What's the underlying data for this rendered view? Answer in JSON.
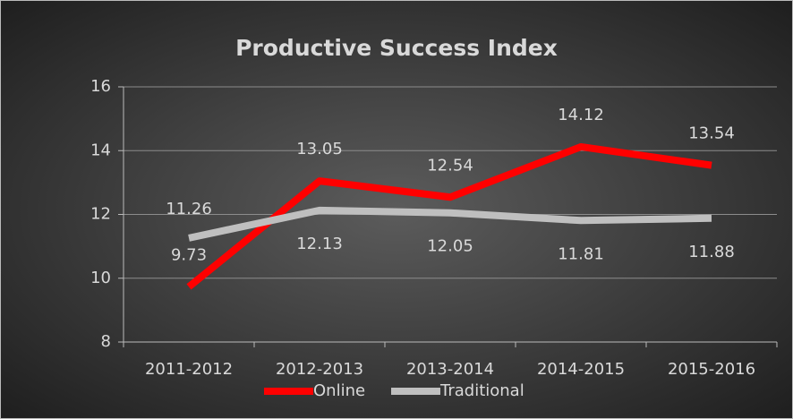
{
  "chart_data": {
    "type": "line",
    "title": "Productive Success Index",
    "categories": [
      "2011-2012",
      "2012-2013",
      "2013-2014",
      "2014-2015",
      "2015-2016"
    ],
    "series": [
      {
        "name": "Online",
        "color": "#ff0000",
        "values": [
          9.73,
          13.05,
          12.54,
          14.12,
          13.54
        ]
      },
      {
        "name": "Traditional",
        "color": "#bfbfbf",
        "values": [
          11.26,
          12.13,
          12.05,
          11.81,
          11.88
        ]
      }
    ],
    "ylim": [
      8,
      16
    ],
    "yticks": [
      8,
      10,
      12,
      14,
      16
    ],
    "grid": true,
    "legend": "bottom"
  }
}
